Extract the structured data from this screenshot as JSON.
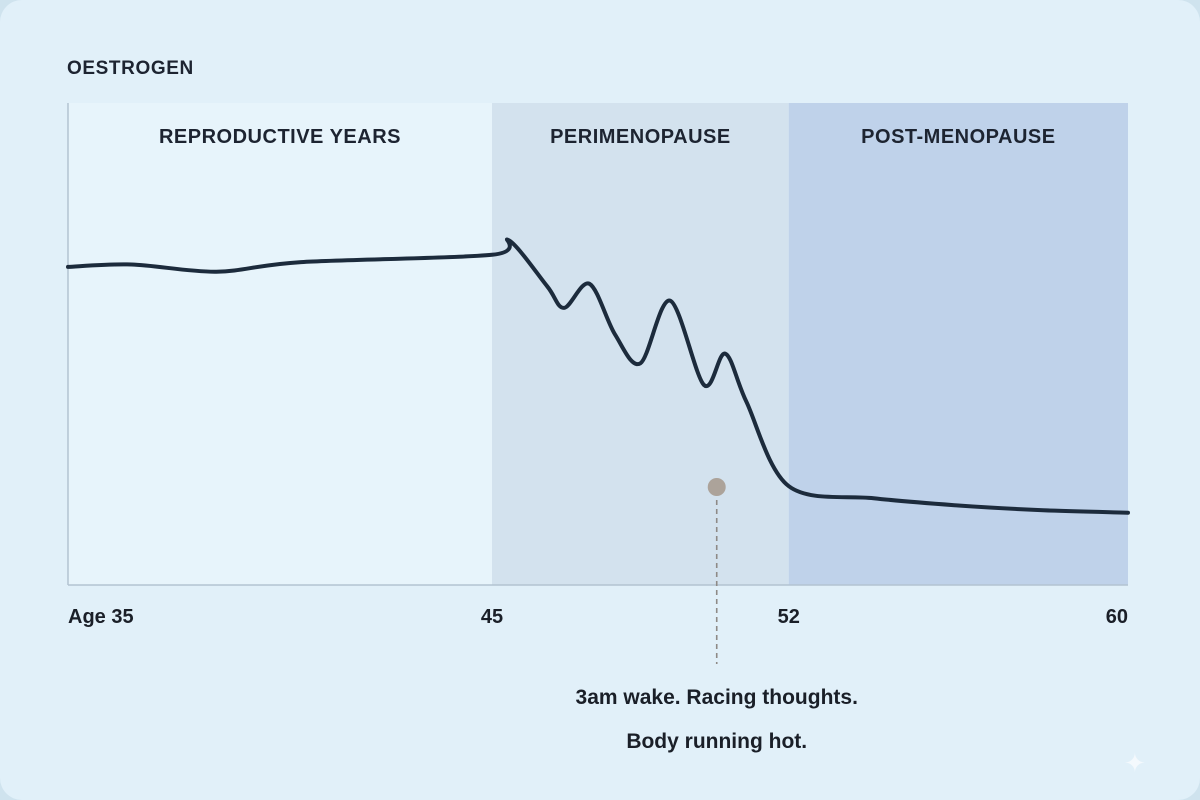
{
  "chart_data": {
    "type": "line",
    "ylabel": "OESTROGEN",
    "xlim": [
      35,
      60
    ],
    "ylim": [
      0,
      100
    ],
    "grid": false,
    "phases": [
      {
        "label": "REPRODUCTIVE YEARS",
        "start": 35,
        "end": 45,
        "color": "#e7f4fb"
      },
      {
        "label": "PERIMENOPAUSE",
        "start": 45,
        "end": 52,
        "color": "#d3e2ee"
      },
      {
        "label": "POST-MENOPAUSE",
        "start": 52,
        "end": 60,
        "color": "#bfd2ea"
      }
    ],
    "x_ticks": [
      {
        "value": 35,
        "label": "Age 35"
      },
      {
        "value": 45,
        "label": "45"
      },
      {
        "value": 52,
        "label": "52"
      },
      {
        "value": 60,
        "label": "60"
      }
    ],
    "series": [
      {
        "color": "#1c2b3c",
        "points": [
          [
            35,
            66
          ],
          [
            36.5,
            66.5
          ],
          [
            38.5,
            65
          ],
          [
            40.5,
            67
          ],
          [
            45,
            68.5
          ],
          [
            45.4,
            71.5
          ],
          [
            46.3,
            62
          ],
          [
            46.7,
            57.5
          ],
          [
            47.3,
            62.5
          ],
          [
            47.9,
            52
          ],
          [
            48.5,
            46
          ],
          [
            49.2,
            59
          ],
          [
            50.0,
            41.5
          ],
          [
            50.5,
            48
          ],
          [
            51.0,
            38
          ],
          [
            52,
            20.5
          ],
          [
            54,
            18
          ],
          [
            56,
            16.5
          ],
          [
            58,
            15.5
          ],
          [
            60,
            15
          ]
        ]
      }
    ],
    "annotation": {
      "x": 50.3,
      "lines": [
        "3am wake. Racing thoughts.",
        "Body running hot."
      ]
    }
  }
}
